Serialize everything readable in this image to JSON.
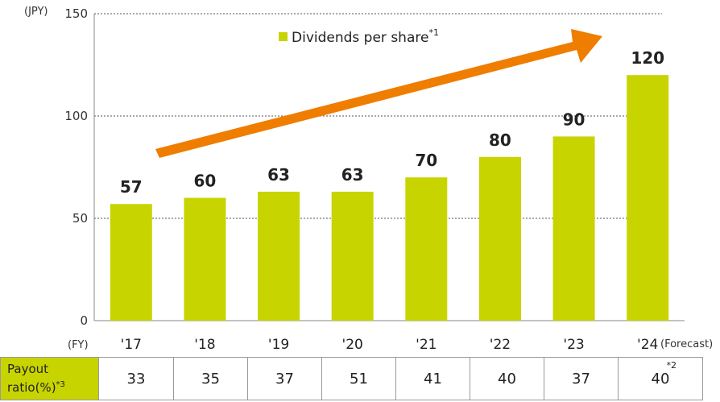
{
  "chart_data": {
    "type": "bar",
    "y_unit_label": "(JPY)",
    "x_unit_label": "(FY)",
    "categories": [
      "'17",
      "'18",
      "'19",
      "'20",
      "'21",
      "'22",
      "'23",
      "'24"
    ],
    "category_note": "(Forecast)",
    "series": [
      {
        "name": "Dividends per share",
        "name_sup": "*1",
        "values": [
          57,
          60,
          63,
          63,
          70,
          80,
          90,
          120
        ]
      }
    ],
    "value_labels": [
      "57",
      "60",
      "63",
      "63",
      "70",
      "80",
      "90",
      "120"
    ],
    "ylim": [
      0,
      150
    ],
    "yticks": [
      0,
      50,
      100,
      150
    ],
    "ytick_labels": [
      "0",
      "50",
      "100",
      "150"
    ],
    "grid": "dotted horizontal",
    "legend_position": "top-center",
    "colors": {
      "bar": "#c8d400",
      "arrow": "#ef7d00"
    },
    "annotation": "upward trend arrow"
  },
  "payout_table": {
    "label_line1": "Payout",
    "label_line2": "ratio(%)",
    "label_sup": "*3",
    "values": [
      "33",
      "35",
      "37",
      "51",
      "41",
      "40",
      "37",
      "40"
    ],
    "last_value_sup": "*2"
  }
}
